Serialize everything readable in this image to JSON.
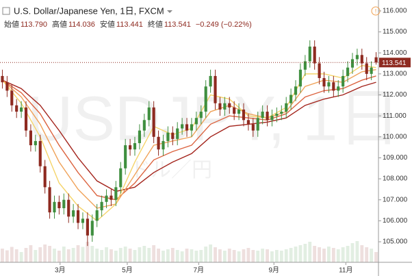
{
  "chart_data": {
    "type": "candlestick",
    "title": "U.S. Dollar/Japanese Yen, 1日, FXCM",
    "ohlc_header": [
      {
        "label": "始値",
        "value": "113.790"
      },
      {
        "label": "高値",
        "value": "114.036"
      },
      {
        "label": "安値",
        "value": "113.441"
      },
      {
        "label": "終値",
        "value": "113.541"
      }
    ],
    "change": "−0.249 (−0.22%)",
    "watermark": "USDJPY, 1日",
    "watermark_sub": "ドル／円",
    "xlim": [
      0,
      80
    ],
    "xticks": [
      {
        "value": 12.7,
        "label": "3月"
      },
      {
        "value": 26.9,
        "label": "5月"
      },
      {
        "value": 42.0,
        "label": "7月"
      },
      {
        "value": 57.9,
        "label": "9月"
      },
      {
        "value": 73.1,
        "label": "11月"
      }
    ],
    "ylim": [
      104.12,
      116.52
    ],
    "yticks": [
      {
        "value": 105,
        "label": "105.000"
      },
      {
        "value": 106,
        "label": "106.000"
      },
      {
        "value": 107,
        "label": "107.000"
      },
      {
        "value": 108,
        "label": "108.000"
      },
      {
        "value": 109,
        "label": "109.000"
      },
      {
        "value": 110,
        "label": "110.000"
      },
      {
        "value": 111,
        "label": "111.000"
      },
      {
        "value": 112,
        "label": "112.000"
      },
      {
        "value": 113,
        "label": "113.000"
      },
      {
        "value": 114,
        "label": "114.000"
      },
      {
        "value": 115,
        "label": "115.000"
      },
      {
        "value": 116,
        "label": "116.000"
      }
    ],
    "up_color": "#3f8f3f",
    "down_color": "#8e2a20",
    "open": [
      112.9,
      112.6,
      112.2,
      111.5,
      111.2,
      111.4,
      110.3,
      109.6,
      109.8,
      108.6,
      107.6,
      106.4,
      106.9,
      106.6,
      107.0,
      106.2,
      106.5,
      105.9,
      106.1,
      105.3,
      106.0,
      106.5,
      106.9,
      107.2,
      107.0,
      107.6,
      108.5,
      109.6,
      109.4,
      109.7,
      110.3,
      110.8,
      111.4,
      110.0,
      109.4,
      109.8,
      110.2,
      109.9,
      110.4,
      110.6,
      110.3,
      110.6,
      110.9,
      111.2,
      112.4,
      112.9,
      111.6,
      111.3,
      111.6,
      111.4,
      111.1,
      111.3,
      110.8,
      110.6,
      110.3,
      110.9,
      111.2,
      110.8,
      111.0,
      111.1,
      111.2,
      111.6,
      112.0,
      112.4,
      113.2,
      113.6,
      114.3,
      113.5,
      112.8,
      112.4,
      112.6,
      112.2,
      112.4,
      112.9,
      113.3,
      113.7,
      113.9,
      113.5,
      113.0,
      113.79
    ],
    "high": [
      113.2,
      112.9,
      112.5,
      111.8,
      111.7,
      111.7,
      110.6,
      110.1,
      110.1,
      108.9,
      107.9,
      107.2,
      107.2,
      107.3,
      107.3,
      106.8,
      106.8,
      106.4,
      106.4,
      106.3,
      106.8,
      107.2,
      107.5,
      107.5,
      107.9,
      108.8,
      109.9,
      109.9,
      110.0,
      110.6,
      111.1,
      111.7,
      111.7,
      110.3,
      110.1,
      110.5,
      110.5,
      110.7,
      110.9,
      110.9,
      110.9,
      111.2,
      111.5,
      112.7,
      113.2,
      113.2,
      111.9,
      111.9,
      111.9,
      111.7,
      111.6,
      111.6,
      111.1,
      110.9,
      111.2,
      111.5,
      111.5,
      111.3,
      111.4,
      111.5,
      111.9,
      112.3,
      112.7,
      113.5,
      113.9,
      114.6,
      114.6,
      113.8,
      113.1,
      112.9,
      112.9,
      112.7,
      113.2,
      113.6,
      114.0,
      114.2,
      114.2,
      113.8,
      113.6,
      114.036
    ],
    "low": [
      112.3,
      111.9,
      111.2,
      110.9,
      110.9,
      110.0,
      109.3,
      109.3,
      108.3,
      107.3,
      106.1,
      106.1,
      106.3,
      106.3,
      105.9,
      105.9,
      105.6,
      105.6,
      104.8,
      105.0,
      105.7,
      106.2,
      106.6,
      106.7,
      106.7,
      107.3,
      108.2,
      109.1,
      109.1,
      109.4,
      110.0,
      110.5,
      109.7,
      109.1,
      109.1,
      109.5,
      109.6,
      109.6,
      110.1,
      110.0,
      110.0,
      110.3,
      110.6,
      110.9,
      112.1,
      111.3,
      111.0,
      111.0,
      111.1,
      110.8,
      110.8,
      110.5,
      110.3,
      110.0,
      110.0,
      110.6,
      110.5,
      110.5,
      110.7,
      110.8,
      110.9,
      111.3,
      111.7,
      112.1,
      112.9,
      113.3,
      113.2,
      112.5,
      112.1,
      112.1,
      111.9,
      111.9,
      112.1,
      112.6,
      113.0,
      113.4,
      113.2,
      112.7,
      112.7,
      113.441
    ],
    "close": [
      112.6,
      112.2,
      111.5,
      111.2,
      111.4,
      110.3,
      109.6,
      109.8,
      108.6,
      107.6,
      106.4,
      106.9,
      106.6,
      107.0,
      106.2,
      106.5,
      105.9,
      106.1,
      105.3,
      106.0,
      106.5,
      106.9,
      107.2,
      107.0,
      107.6,
      108.5,
      109.6,
      109.4,
      109.7,
      110.3,
      110.8,
      111.4,
      110.0,
      109.4,
      109.8,
      110.2,
      109.9,
      110.4,
      110.6,
      110.3,
      110.6,
      110.9,
      111.2,
      112.4,
      112.9,
      111.6,
      111.3,
      111.6,
      111.4,
      111.1,
      111.3,
      110.8,
      110.6,
      110.3,
      110.9,
      111.2,
      110.8,
      111.0,
      111.1,
      111.2,
      111.6,
      112.0,
      112.4,
      113.2,
      113.6,
      114.3,
      113.5,
      112.8,
      112.4,
      112.6,
      112.2,
      112.4,
      112.9,
      113.3,
      113.7,
      113.9,
      113.5,
      113.0,
      113.3,
      113.541
    ],
    "volume": [
      40,
      35,
      45,
      38,
      30,
      42,
      50,
      36,
      44,
      52,
      48,
      40,
      34,
      46,
      38,
      42,
      50,
      45,
      60,
      48,
      40,
      36,
      44,
      38,
      34,
      42,
      46,
      40,
      36,
      44,
      48,
      42,
      50,
      40,
      34,
      38,
      42,
      36,
      32,
      40,
      38,
      34,
      36,
      46,
      52,
      44,
      38,
      34,
      40,
      36,
      32,
      38,
      42,
      36,
      34,
      40,
      38,
      32,
      36,
      34,
      38,
      42,
      46,
      50,
      54,
      60,
      48,
      44,
      40,
      46,
      42,
      38,
      44,
      48,
      56,
      62,
      50,
      44,
      40,
      30
    ],
    "volume_max": 100,
    "ma_x": [
      0.5,
      4.5,
      8.5,
      12.5,
      16.5,
      20.5,
      24.5,
      28.5,
      32.5,
      36.5,
      40.5,
      44.5,
      48.5,
      52.5,
      56.5,
      60.5,
      64.5,
      68.5,
      72.5,
      76.5,
      79.5
    ],
    "series": [
      {
        "color": "#f5d469",
        "values": [
          112.7,
          111.6,
          110.0,
          107.8,
          106.7,
          106.0,
          106.8,
          108.8,
          110.5,
          110.1,
          110.4,
          112.0,
          111.8,
          111.0,
          110.9,
          111.4,
          113.0,
          113.0,
          112.8,
          113.4,
          113.3
        ]
      },
      {
        "color": "#f0a35a",
        "values": [
          112.7,
          111.9,
          110.6,
          108.8,
          107.5,
          106.6,
          106.8,
          108.2,
          109.6,
          109.8,
          110.0,
          111.2,
          111.5,
          111.1,
          110.9,
          111.2,
          112.4,
          112.7,
          112.6,
          113.1,
          113.2
        ]
      },
      {
        "color": "#dc6440",
        "values": [
          112.7,
          112.1,
          111.1,
          109.6,
          108.3,
          107.2,
          107.0,
          107.8,
          108.9,
          109.3,
          109.6,
          110.6,
          111.0,
          110.9,
          110.8,
          111.1,
          111.9,
          112.2,
          112.3,
          112.7,
          112.9
        ]
      },
      {
        "color": "#a3231b",
        "values": [
          112.7,
          112.3,
          111.5,
          110.3,
          109.0,
          107.9,
          107.4,
          107.6,
          108.3,
          108.8,
          109.2,
          110.0,
          110.5,
          110.6,
          110.7,
          110.9,
          111.5,
          111.8,
          112.0,
          112.4,
          112.6
        ]
      }
    ]
  }
}
